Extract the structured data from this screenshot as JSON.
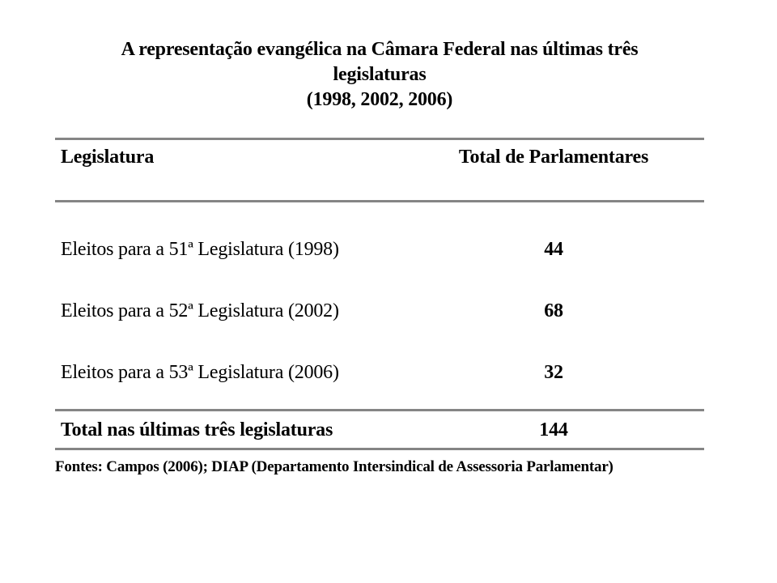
{
  "page": {
    "title_lines": [
      "A representação evangélica na Câmara Federal nas últimas três",
      "legislaturas",
      "(1998, 2002, 2006)"
    ]
  },
  "table": {
    "columns": [
      "Legislatura",
      "Total de Parlamentares"
    ],
    "rows": [
      {
        "label": "Eleitos para a 51ª Legislatura (1998)",
        "value": "44"
      },
      {
        "label": "Eleitos para a 52ª Legislatura (2002)",
        "value": "68"
      },
      {
        "label": "Eleitos para a 53ª Legislatura (2006)",
        "value": "32"
      }
    ],
    "total": {
      "label": "Total nas últimas três legislaturas",
      "value": "144"
    }
  },
  "footer": {
    "sources": "Fontes: Campos (2006); DIAP (Departamento Intersindical de Assessoria Parlamentar)"
  },
  "colors": {
    "background": "#ffffff",
    "text": "#000000",
    "rule": "#858585"
  },
  "chart_data": {
    "type": "table",
    "title": "A representação evangélica na Câmara Federal nas últimas três legislaturas (1998, 2002, 2006)",
    "columns": [
      "Legislatura",
      "Total de Parlamentares"
    ],
    "rows": [
      [
        "Eleitos para a 51ª Legislatura (1998)",
        44
      ],
      [
        "Eleitos para a 52ª Legislatura (2002)",
        68
      ],
      [
        "Eleitos para a 53ª Legislatura (2006)",
        32
      ],
      [
        "Total nas últimas três legislaturas",
        144
      ]
    ],
    "source_note": "Fontes: Campos (2006); DIAP (Departamento Intersindical de Assessoria Parlamentar)"
  }
}
